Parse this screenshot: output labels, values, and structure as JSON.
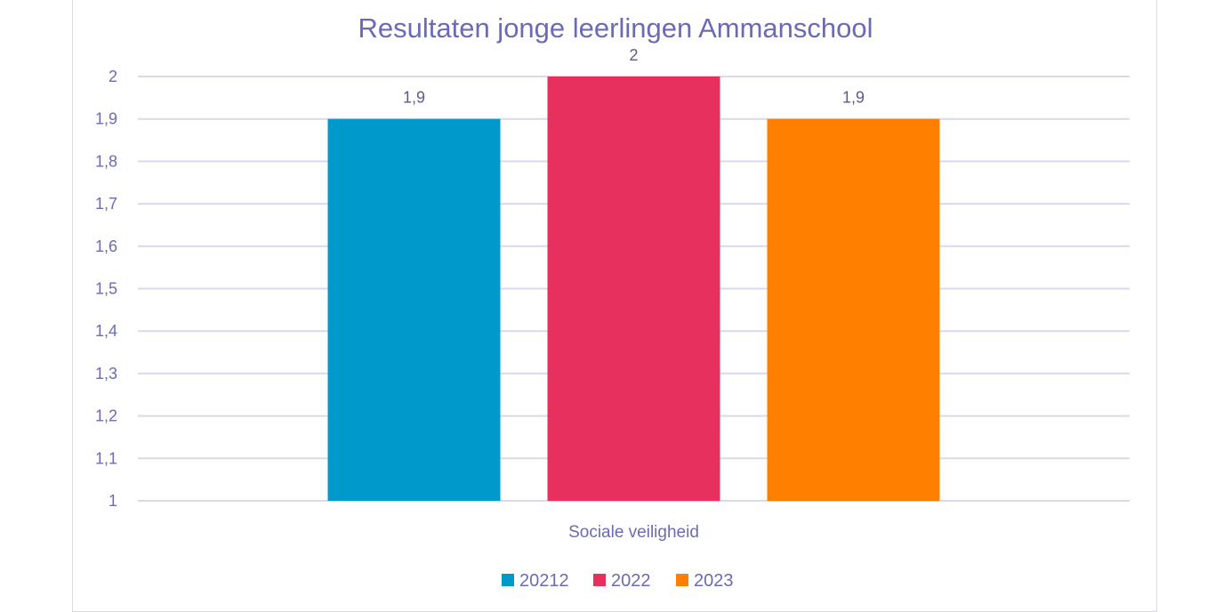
{
  "chart_data": {
    "type": "bar",
    "title": "Resultaten jonge leerlingen Ammanschool",
    "categories": [
      "Sociale veiligheid"
    ],
    "series": [
      {
        "name": "20212",
        "values": [
          1.9
        ],
        "color": "#0099cc",
        "label": "1,9"
      },
      {
        "name": "2022",
        "values": [
          2.0
        ],
        "color": "#e8305e",
        "label": "2"
      },
      {
        "name": "2023",
        "values": [
          1.9
        ],
        "color": "#ff8000",
        "label": "1,9"
      }
    ],
    "ylim": [
      1,
      2
    ],
    "yticks": [
      "1",
      "1,1",
      "1,2",
      "1,3",
      "1,4",
      "1,5",
      "1,6",
      "1,7",
      "1,8",
      "1,9",
      "2"
    ],
    "grid": true,
    "legend_position": "bottom",
    "colors": {
      "grid": "#d9d9ee",
      "text": "#6b6bb5"
    }
  }
}
